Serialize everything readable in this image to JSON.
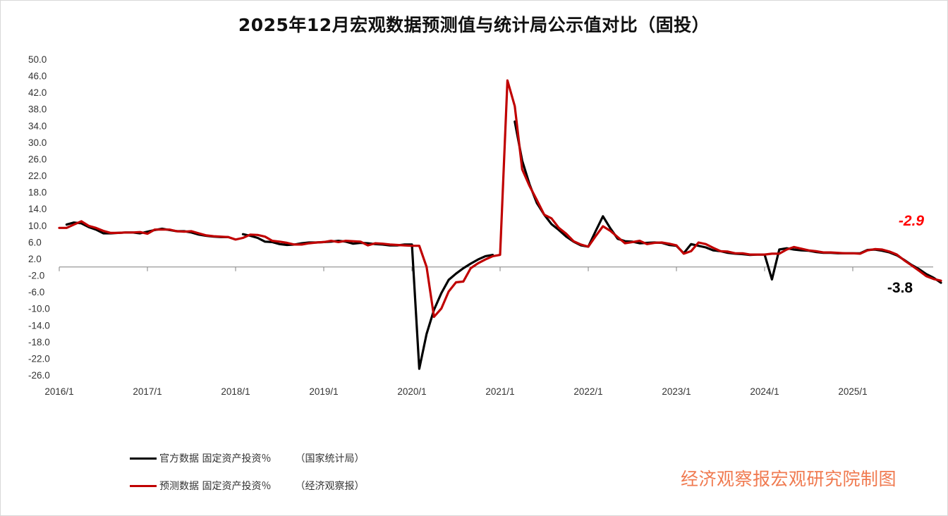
{
  "title": "2025年12月宏观数据预测值与统计局公示值对比（固投）",
  "watermark": "经济观察报宏观研究院制图",
  "colors": {
    "official": "#000000",
    "forecast": "#c00000",
    "axis": "#808080"
  },
  "chart_data": {
    "type": "line",
    "title": "2025年12月宏观数据预测值与统计局公示值对比（固投）",
    "ylim": [
      -26,
      50
    ],
    "y_ticks": [
      50.0,
      46.0,
      42.0,
      38.0,
      34.0,
      30.0,
      26.0,
      22.0,
      18.0,
      14.0,
      10.0,
      6.0,
      2.0,
      -2.0,
      -6.0,
      -10.0,
      -14.0,
      -18.0,
      -22.0,
      -26.0
    ],
    "x_tick_labels": [
      "2016/1",
      "2017/1",
      "2018/1",
      "2019/1",
      "2020/1",
      "2021/1",
      "2022/1",
      "2023/1",
      "2024/1",
      "2025/1"
    ],
    "grid": false,
    "legend_position": "bottom-left",
    "annotations": [
      {
        "text": "-2.9",
        "series": "forecast",
        "color": "#ff0000"
      },
      {
        "text": "-3.8",
        "series": "official",
        "color": "#000000"
      }
    ],
    "series": [
      {
        "name": "官方数据 固定资产投资％",
        "source": "（国家统计局）",
        "color": "#000000",
        "points": [
          [
            "2016/02",
            10.2
          ],
          [
            "2016/03",
            10.7
          ],
          [
            "2016/04",
            10.5
          ],
          [
            "2016/05",
            9.6
          ],
          [
            "2016/06",
            9.0
          ],
          [
            "2016/07",
            8.1
          ],
          [
            "2016/08",
            8.1
          ],
          [
            "2016/09",
            8.2
          ],
          [
            "2016/10",
            8.3
          ],
          [
            "2016/11",
            8.3
          ],
          [
            "2016/12",
            8.1
          ],
          [
            "2017/02",
            8.9
          ],
          [
            "2017/03",
            9.2
          ],
          [
            "2017/04",
            8.9
          ],
          [
            "2017/05",
            8.6
          ],
          [
            "2017/06",
            8.6
          ],
          [
            "2017/07",
            8.3
          ],
          [
            "2017/08",
            7.8
          ],
          [
            "2017/09",
            7.5
          ],
          [
            "2017/10",
            7.3
          ],
          [
            "2017/11",
            7.2
          ],
          [
            "2017/12",
            7.2
          ],
          null,
          [
            "2018/02",
            7.9
          ],
          [
            "2018/03",
            7.5
          ],
          [
            "2018/04",
            7.0
          ],
          [
            "2018/05",
            6.1
          ],
          [
            "2018/06",
            6.0
          ],
          [
            "2018/07",
            5.5
          ],
          [
            "2018/08",
            5.3
          ],
          [
            "2018/09",
            5.4
          ],
          [
            "2018/10",
            5.7
          ],
          [
            "2018/11",
            5.9
          ],
          [
            "2018/12",
            5.9
          ],
          [
            "2019/02",
            6.1
          ],
          [
            "2019/03",
            6.3
          ],
          [
            "2019/04",
            6.1
          ],
          [
            "2019/05",
            5.6
          ],
          [
            "2019/06",
            5.8
          ],
          [
            "2019/07",
            5.7
          ],
          [
            "2019/08",
            5.5
          ],
          [
            "2019/09",
            5.4
          ],
          [
            "2019/10",
            5.2
          ],
          [
            "2019/11",
            5.2
          ],
          [
            "2019/12",
            5.4
          ],
          [
            "2020/01",
            5.4
          ],
          [
            "2020/02",
            -24.5
          ],
          [
            "2020/03",
            -16.1
          ],
          [
            "2020/04",
            -10.3
          ],
          [
            "2020/05",
            -6.3
          ],
          [
            "2020/06",
            -3.1
          ],
          [
            "2020/07",
            -1.6
          ],
          [
            "2020/08",
            -0.3
          ],
          [
            "2020/09",
            0.8
          ],
          [
            "2020/10",
            1.8
          ],
          [
            "2020/11",
            2.6
          ],
          [
            "2020/12",
            2.9
          ],
          null,
          [
            "2021/03",
            35.0
          ],
          [
            "2021/04",
            25.6
          ],
          [
            "2021/05",
            19.9
          ],
          [
            "2021/06",
            15.4
          ],
          [
            "2021/07",
            12.6
          ],
          [
            "2021/08",
            10.3
          ],
          [
            "2021/09",
            8.9
          ],
          [
            "2021/10",
            7.3
          ],
          [
            "2021/11",
            6.1
          ],
          [
            "2021/12",
            5.2
          ],
          [
            "2022/01",
            4.9
          ],
          [
            "2022/02",
            8.6
          ],
          [
            "2022/03",
            12.2
          ],
          [
            "2022/04",
            9.3
          ],
          [
            "2022/05",
            6.8
          ],
          [
            "2022/06",
            6.2
          ],
          [
            "2022/07",
            6.1
          ],
          [
            "2022/08",
            5.7
          ],
          [
            "2022/09",
            5.8
          ],
          [
            "2022/10",
            5.9
          ],
          [
            "2022/11",
            5.8
          ],
          [
            "2022/12",
            5.3
          ],
          [
            "2023/01",
            5.1
          ],
          [
            "2023/02",
            3.3
          ],
          [
            "2023/03",
            5.5
          ],
          [
            "2023/04",
            5.1
          ],
          [
            "2023/05",
            4.7
          ],
          [
            "2023/06",
            4.0
          ],
          [
            "2023/07",
            3.8
          ],
          [
            "2023/08",
            3.4
          ],
          [
            "2023/09",
            3.2
          ],
          [
            "2023/10",
            3.1
          ],
          [
            "2023/11",
            2.9
          ],
          [
            "2023/12",
            3.0
          ],
          [
            "2024/01",
            3.0
          ],
          [
            "2024/02",
            -3.0
          ],
          [
            "2024/03",
            4.2
          ],
          [
            "2024/04",
            4.5
          ],
          [
            "2024/05",
            4.2
          ],
          [
            "2024/06",
            4.0
          ],
          [
            "2024/07",
            3.9
          ],
          [
            "2024/08",
            3.6
          ],
          [
            "2024/09",
            3.4
          ],
          [
            "2024/10",
            3.4
          ],
          [
            "2024/11",
            3.3
          ],
          [
            "2024/12",
            3.3
          ],
          [
            "2025/01",
            3.3
          ],
          [
            "2025/02",
            3.3
          ],
          [
            "2025/03",
            4.1
          ],
          [
            "2025/04",
            4.2
          ],
          [
            "2025/05",
            3.9
          ],
          [
            "2025/06",
            3.5
          ],
          [
            "2025/07",
            2.8
          ],
          [
            "2025/08",
            1.7
          ],
          [
            "2025/09",
            0.5
          ],
          [
            "2025/10",
            -0.5
          ],
          [
            "2025/11",
            -1.7
          ],
          [
            "2025/12",
            -2.6
          ],
          [
            "2026/01",
            -3.8
          ]
        ]
      },
      {
        "name": "预测数据 固定资产投资％",
        "source": "（经济观察报）",
        "color": "#c00000",
        "points": [
          [
            "2016/01",
            9.4
          ],
          [
            "2016/02",
            9.4
          ],
          [
            "2016/03",
            10.2
          ],
          [
            "2016/04",
            11.0
          ],
          [
            "2016/05",
            9.9
          ],
          [
            "2016/06",
            9.4
          ],
          [
            "2016/07",
            8.7
          ],
          [
            "2016/08",
            8.2
          ],
          [
            "2016/09",
            8.2
          ],
          [
            "2016/10",
            8.3
          ],
          [
            "2016/11",
            8.3
          ],
          [
            "2016/12",
            8.4
          ],
          [
            "2017/01",
            8.0
          ],
          [
            "2017/02",
            9.0
          ],
          [
            "2017/03",
            9.0
          ],
          [
            "2017/04",
            9.0
          ],
          [
            "2017/05",
            8.6
          ],
          [
            "2017/06",
            8.5
          ],
          [
            "2017/07",
            8.6
          ],
          [
            "2017/08",
            8.1
          ],
          [
            "2017/09",
            7.6
          ],
          [
            "2017/10",
            7.4
          ],
          [
            "2017/11",
            7.3
          ],
          [
            "2017/12",
            7.2
          ],
          [
            "2018/01",
            6.6
          ],
          [
            "2018/02",
            7.0
          ],
          [
            "2018/03",
            7.8
          ],
          [
            "2018/04",
            7.7
          ],
          [
            "2018/05",
            7.3
          ],
          [
            "2018/06",
            6.3
          ],
          [
            "2018/07",
            6.1
          ],
          [
            "2018/08",
            5.8
          ],
          [
            "2018/09",
            5.4
          ],
          [
            "2018/10",
            5.4
          ],
          [
            "2018/11",
            5.7
          ],
          [
            "2018/12",
            5.9
          ],
          [
            "2019/01",
            6.0
          ],
          [
            "2019/02",
            6.3
          ],
          [
            "2019/03",
            6.0
          ],
          [
            "2019/04",
            6.3
          ],
          [
            "2019/05",
            6.2
          ],
          [
            "2019/06",
            6.1
          ],
          [
            "2019/07",
            5.2
          ],
          [
            "2019/08",
            5.7
          ],
          [
            "2019/09",
            5.6
          ],
          [
            "2019/10",
            5.4
          ],
          [
            "2019/11",
            5.3
          ],
          [
            "2019/12",
            5.2
          ],
          [
            "2020/01",
            5.1
          ],
          [
            "2020/02",
            5.1
          ],
          [
            "2020/03",
            0.0
          ],
          [
            "2020/04",
            -12.0
          ],
          [
            "2020/05",
            -10.0
          ],
          [
            "2020/06",
            -5.9
          ],
          [
            "2020/07",
            -3.7
          ],
          [
            "2020/08",
            -3.5
          ],
          [
            "2020/09",
            -0.3
          ],
          [
            "2020/10",
            0.9
          ],
          [
            "2020/11",
            1.8
          ],
          [
            "2020/12",
            2.6
          ],
          [
            "2021/01",
            2.9
          ],
          [
            "2021/02",
            44.9
          ],
          [
            "2021/03",
            38.7
          ],
          [
            "2021/04",
            23.5
          ],
          [
            "2021/05",
            19.5
          ],
          [
            "2021/06",
            16.1
          ],
          [
            "2021/07",
            12.6
          ],
          [
            "2021/08",
            11.7
          ],
          [
            "2021/09",
            9.4
          ],
          [
            "2021/10",
            8.0
          ],
          [
            "2021/11",
            6.2
          ],
          [
            "2021/12",
            5.4
          ],
          [
            "2022/01",
            4.9
          ],
          [
            "2022/02",
            7.4
          ],
          [
            "2022/03",
            9.8
          ],
          [
            "2022/04",
            8.7
          ],
          [
            "2022/05",
            7.2
          ],
          [
            "2022/06",
            5.7
          ],
          [
            "2022/07",
            6.0
          ],
          [
            "2022/08",
            6.3
          ],
          [
            "2022/09",
            5.5
          ],
          [
            "2022/10",
            5.8
          ],
          [
            "2022/11",
            5.9
          ],
          [
            "2022/12",
            5.6
          ],
          [
            "2023/01",
            5.2
          ],
          [
            "2023/02",
            3.2
          ],
          [
            "2023/03",
            3.8
          ],
          [
            "2023/04",
            5.9
          ],
          [
            "2023/05",
            5.5
          ],
          [
            "2023/06",
            4.6
          ],
          [
            "2023/07",
            3.8
          ],
          [
            "2023/08",
            3.7
          ],
          [
            "2023/09",
            3.3
          ],
          [
            "2023/10",
            3.3
          ],
          [
            "2023/11",
            3.0
          ],
          [
            "2023/12",
            3.0
          ],
          [
            "2024/01",
            3.0
          ],
          [
            "2024/02",
            3.2
          ],
          [
            "2024/03",
            3.2
          ],
          [
            "2024/04",
            4.2
          ],
          [
            "2024/05",
            4.8
          ],
          [
            "2024/06",
            4.4
          ],
          [
            "2024/07",
            4.0
          ],
          [
            "2024/08",
            3.8
          ],
          [
            "2024/09",
            3.5
          ],
          [
            "2024/10",
            3.5
          ],
          [
            "2024/11",
            3.4
          ],
          [
            "2024/12",
            3.3
          ],
          [
            "2025/01",
            3.3
          ],
          [
            "2025/02",
            3.2
          ],
          [
            "2025/03",
            4.0
          ],
          [
            "2025/04",
            4.3
          ],
          [
            "2025/05",
            4.2
          ],
          [
            "2025/06",
            3.7
          ],
          [
            "2025/07",
            3.0
          ],
          [
            "2025/08",
            1.6
          ],
          [
            "2025/09",
            0.4
          ],
          [
            "2025/10",
            -0.9
          ],
          [
            "2025/11",
            -2.2
          ],
          [
            "2025/12",
            -2.9
          ],
          [
            "2026/01",
            -3.3
          ]
        ]
      }
    ]
  }
}
